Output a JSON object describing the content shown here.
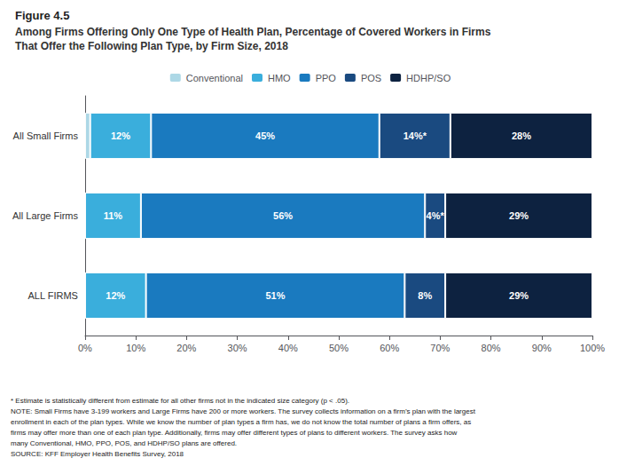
{
  "chart_data": {
    "type": "bar",
    "orientation": "horizontal",
    "stacked": true,
    "title": "Figure 4.5",
    "subtitle": [
      "Among Firms Offering Only One Type of Health Plan, Percentage of Covered Workers in Firms",
      "That Offer the Following Plan Type, by Firm Size, 2018"
    ],
    "categories": [
      "All Small Firms",
      "All Large Firms",
      "ALL FIRMS"
    ],
    "series": [
      {
        "name": "Conventional",
        "color": "#add8e6",
        "values": [
          1,
          0,
          0
        ],
        "value_labels": [
          null,
          null,
          null
        ]
      },
      {
        "name": "HMO",
        "color": "#3aaedc",
        "values": [
          12,
          11,
          12
        ],
        "value_labels": [
          "12%",
          "11%",
          "12%"
        ]
      },
      {
        "name": "PPO",
        "color": "#1a7abf",
        "values": [
          45,
          56,
          51
        ],
        "value_labels": [
          "45%",
          "56%",
          "51%"
        ]
      },
      {
        "name": "POS",
        "color": "#1a4a80",
        "values": [
          14,
          4,
          8
        ],
        "value_labels": [
          "14%*",
          "4%*",
          "8%"
        ]
      },
      {
        "name": "HDHP/SO",
        "color": "#0d2240",
        "values": [
          28,
          29,
          29
        ],
        "value_labels": [
          "28%",
          "29%",
          "29%"
        ]
      }
    ],
    "xlim": [
      0,
      100
    ],
    "xticks": [
      {
        "value": 0,
        "label": "0%"
      },
      {
        "value": 10,
        "label": "10%"
      },
      {
        "value": 20,
        "label": "20%"
      },
      {
        "value": 30,
        "label": "30%"
      },
      {
        "value": 40,
        "label": "40%"
      },
      {
        "value": 50,
        "label": "50%"
      },
      {
        "value": 60,
        "label": "60%"
      },
      {
        "value": 70,
        "label": "70%"
      },
      {
        "value": 80,
        "label": "80%"
      },
      {
        "value": 90,
        "label": "90%"
      },
      {
        "value": 100,
        "label": "100%"
      }
    ],
    "data_labels": true,
    "grid": false,
    "legend": "top",
    "annotations": [
      "* Estimate is statistically different from estimate for all other firms not in the indicated size category (p < .05).",
      "NOTE: Small Firms have 3-199 workers and Large Firms have 200 or more workers. The survey collects information on a firm’s plan with the largest",
      "enrollment in each of the plan types. While we know the number of plan types a firm has, we do not know the total number of plans a firm offers, as",
      "firms may offer more than one of each plan type. Additionally, firms may offer different types of plans to different workers. The survey asks how",
      "many Conventional, HMO, PPO, POS, and HDHP/SO plans are offered.",
      "SOURCE: KFF Employer Health Benefits Survey, 2018"
    ]
  }
}
